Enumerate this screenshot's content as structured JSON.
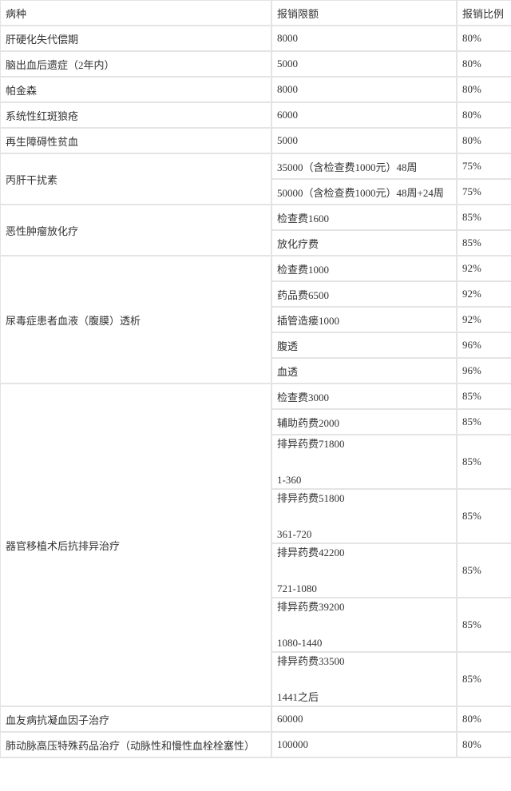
{
  "table": {
    "headers": [
      "病种",
      "报销限额",
      "报销比例"
    ],
    "groups": [
      {
        "disease": "肝硬化失代偿期",
        "items": [
          {
            "limit": [
              "8000"
            ],
            "ratio": "80%"
          }
        ]
      },
      {
        "disease": "脑出血后遗症（2年内）",
        "items": [
          {
            "limit": [
              "5000"
            ],
            "ratio": "80%"
          }
        ]
      },
      {
        "disease": "帕金森",
        "items": [
          {
            "limit": [
              "8000"
            ],
            "ratio": "80%"
          }
        ]
      },
      {
        "disease": "系统性红斑狼疮",
        "items": [
          {
            "limit": [
              "6000"
            ],
            "ratio": "80%"
          }
        ]
      },
      {
        "disease": "再生障碍性贫血",
        "items": [
          {
            "limit": [
              "5000"
            ],
            "ratio": "80%"
          }
        ]
      },
      {
        "disease": "丙肝干扰素",
        "items": [
          {
            "limit": [
              "35000（含检查费1000元）48周"
            ],
            "ratio": "75%"
          },
          {
            "limit": [
              "50000（含检查费1000元）48周+24周"
            ],
            "ratio": "75%"
          }
        ]
      },
      {
        "disease": "恶性肿瘤放化疗",
        "items": [
          {
            "limit": [
              "检查费1600"
            ],
            "ratio": "85%"
          },
          {
            "limit": [
              "放化疗费"
            ],
            "ratio": "85%"
          }
        ]
      },
      {
        "disease": "尿毒症患者血液（腹膜）透析",
        "items": [
          {
            "limit": [
              "检查费1000"
            ],
            "ratio": "92%"
          },
          {
            "limit": [
              "药品费6500"
            ],
            "ratio": "92%"
          },
          {
            "limit": [
              "插管造瘘1000"
            ],
            "ratio": "92%"
          },
          {
            "limit": [
              "腹透"
            ],
            "ratio": "96%"
          },
          {
            "limit": [
              "血透"
            ],
            "ratio": "96%"
          }
        ]
      },
      {
        "disease": "器官移植术后抗排异治疗",
        "items": [
          {
            "limit": [
              "检查费3000"
            ],
            "ratio": "85%"
          },
          {
            "limit": [
              "辅助药费2000"
            ],
            "ratio": "85%"
          },
          {
            "limit": [
              "排异药费71800",
              "1-360"
            ],
            "ratio": "85%"
          },
          {
            "limit": [
              "排异药费51800",
              "361-720"
            ],
            "ratio": "85%"
          },
          {
            "limit": [
              "排异药费42200",
              "721-1080"
            ],
            "ratio": "85%"
          },
          {
            "limit": [
              "排异药费39200",
              "1080-1440"
            ],
            "ratio": "85%"
          },
          {
            "limit": [
              "排异药费33500",
              "1441之后"
            ],
            "ratio": "85%"
          }
        ]
      },
      {
        "disease": "血友病抗凝血因子治疗",
        "items": [
          {
            "limit": [
              "60000"
            ],
            "ratio": "80%"
          }
        ]
      },
      {
        "disease": "肺动脉高压特殊药品治疗（动脉性和慢性血栓栓塞性）",
        "items": [
          {
            "limit": [
              "100000"
            ],
            "ratio": "80%"
          }
        ]
      }
    ]
  }
}
